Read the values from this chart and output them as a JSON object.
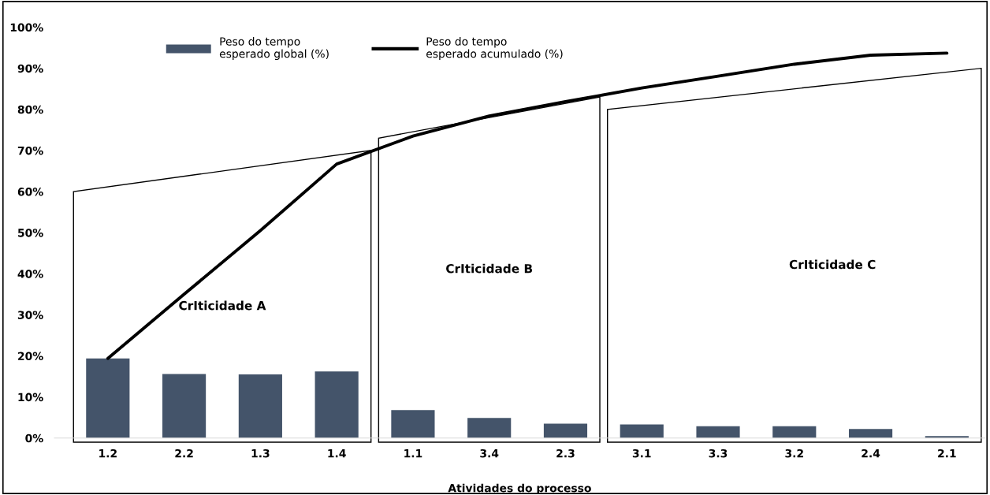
{
  "chart_data": {
    "type": "bar",
    "xlabel": "Atividades do processo",
    "categories": [
      "1.2",
      "2.2",
      "1.3",
      "1.4",
      "1.1",
      "3.4",
      "2.3",
      "3.1",
      "3.3",
      "3.2",
      "2.4",
      "2.1"
    ],
    "series": [
      {
        "name": "Peso do tempo\nesperado global (%)",
        "color": "#44546a",
        "values": [
          19.4,
          15.6,
          15.5,
          16.2,
          6.8,
          4.9,
          3.5,
          3.3,
          2.9,
          2.9,
          2.2,
          0.5
        ]
      },
      {
        "name": "Peso do tempo\nesperado acumulado (%)",
        "type": "line",
        "color": "#000000",
        "values": [
          19.4,
          35.0,
          50.5,
          66.7,
          73.5,
          78.4,
          81.9,
          85.2,
          88.1,
          91.0,
          93.2,
          93.7
        ]
      }
    ],
    "ylim": [
      0,
      100
    ],
    "yticks": [
      {
        "value": 0,
        "label": "0%"
      },
      {
        "value": 10,
        "label": "10%"
      },
      {
        "value": 20,
        "label": "20%"
      },
      {
        "value": 30,
        "label": "30%"
      },
      {
        "value": 40,
        "label": "40%"
      },
      {
        "value": 50,
        "label": "50%"
      },
      {
        "value": 60,
        "label": "60%"
      },
      {
        "value": 70,
        "label": "70%"
      },
      {
        "value": 80,
        "label": "80%"
      },
      {
        "value": 90,
        "label": "90%"
      },
      {
        "value": 100,
        "label": "100%"
      }
    ],
    "annotations": [
      "CrIticidade A",
      "CrIticidade B",
      "CrIticidade C"
    ],
    "grid": false,
    "legend": "top",
    "marker": "none"
  }
}
